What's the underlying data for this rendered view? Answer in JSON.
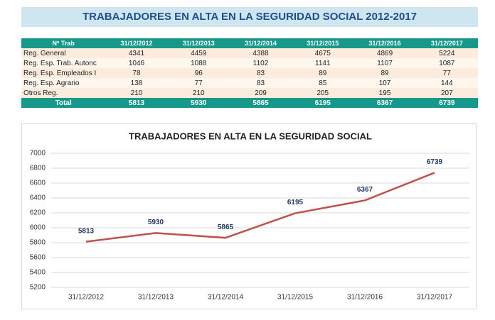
{
  "title": "TRABAJADORES EN ALTA EN LA SEGURIDAD SOCIAL 2012-2017",
  "table": {
    "headers": [
      "Nº Trab",
      "31/12/2012",
      "31/12/2013",
      "31/12/2014",
      "31/12/2015",
      "31/12/2016",
      "31/12/2017"
    ],
    "rows": [
      [
        "Reg. General",
        4341,
        4459,
        4388,
        4675,
        4869,
        5224
      ],
      [
        "Reg. Esp. Trab. Autonc",
        1046,
        1088,
        1102,
        1141,
        1107,
        1087
      ],
      [
        "Reg. Esp. Empleados I",
        78,
        96,
        83,
        89,
        89,
        77
      ],
      [
        "Reg. Esp. Agrario",
        138,
        77,
        83,
        85,
        107,
        144
      ],
      [
        "Otros Reg.",
        210,
        210,
        209,
        205,
        195,
        207
      ]
    ],
    "total": [
      "Total",
      5813,
      5930,
      5865,
      6195,
      6367,
      6739
    ]
  },
  "chart_data": {
    "type": "line",
    "title": "TRABAJADORES EN ALTA EN LA SEGURIDAD SOCIAL",
    "categories": [
      "31/12/2012",
      "31/12/2013",
      "31/12/2014",
      "31/12/2015",
      "31/12/2016",
      "31/12/2017"
    ],
    "values": [
      5813,
      5930,
      5865,
      6195,
      6367,
      6739
    ],
    "color": "#c0504d",
    "ylim": [
      5200,
      7000
    ],
    "yticks": [
      5200,
      5400,
      5600,
      5800,
      6000,
      6200,
      6400,
      6600,
      6800,
      7000
    ],
    "grid": true
  }
}
